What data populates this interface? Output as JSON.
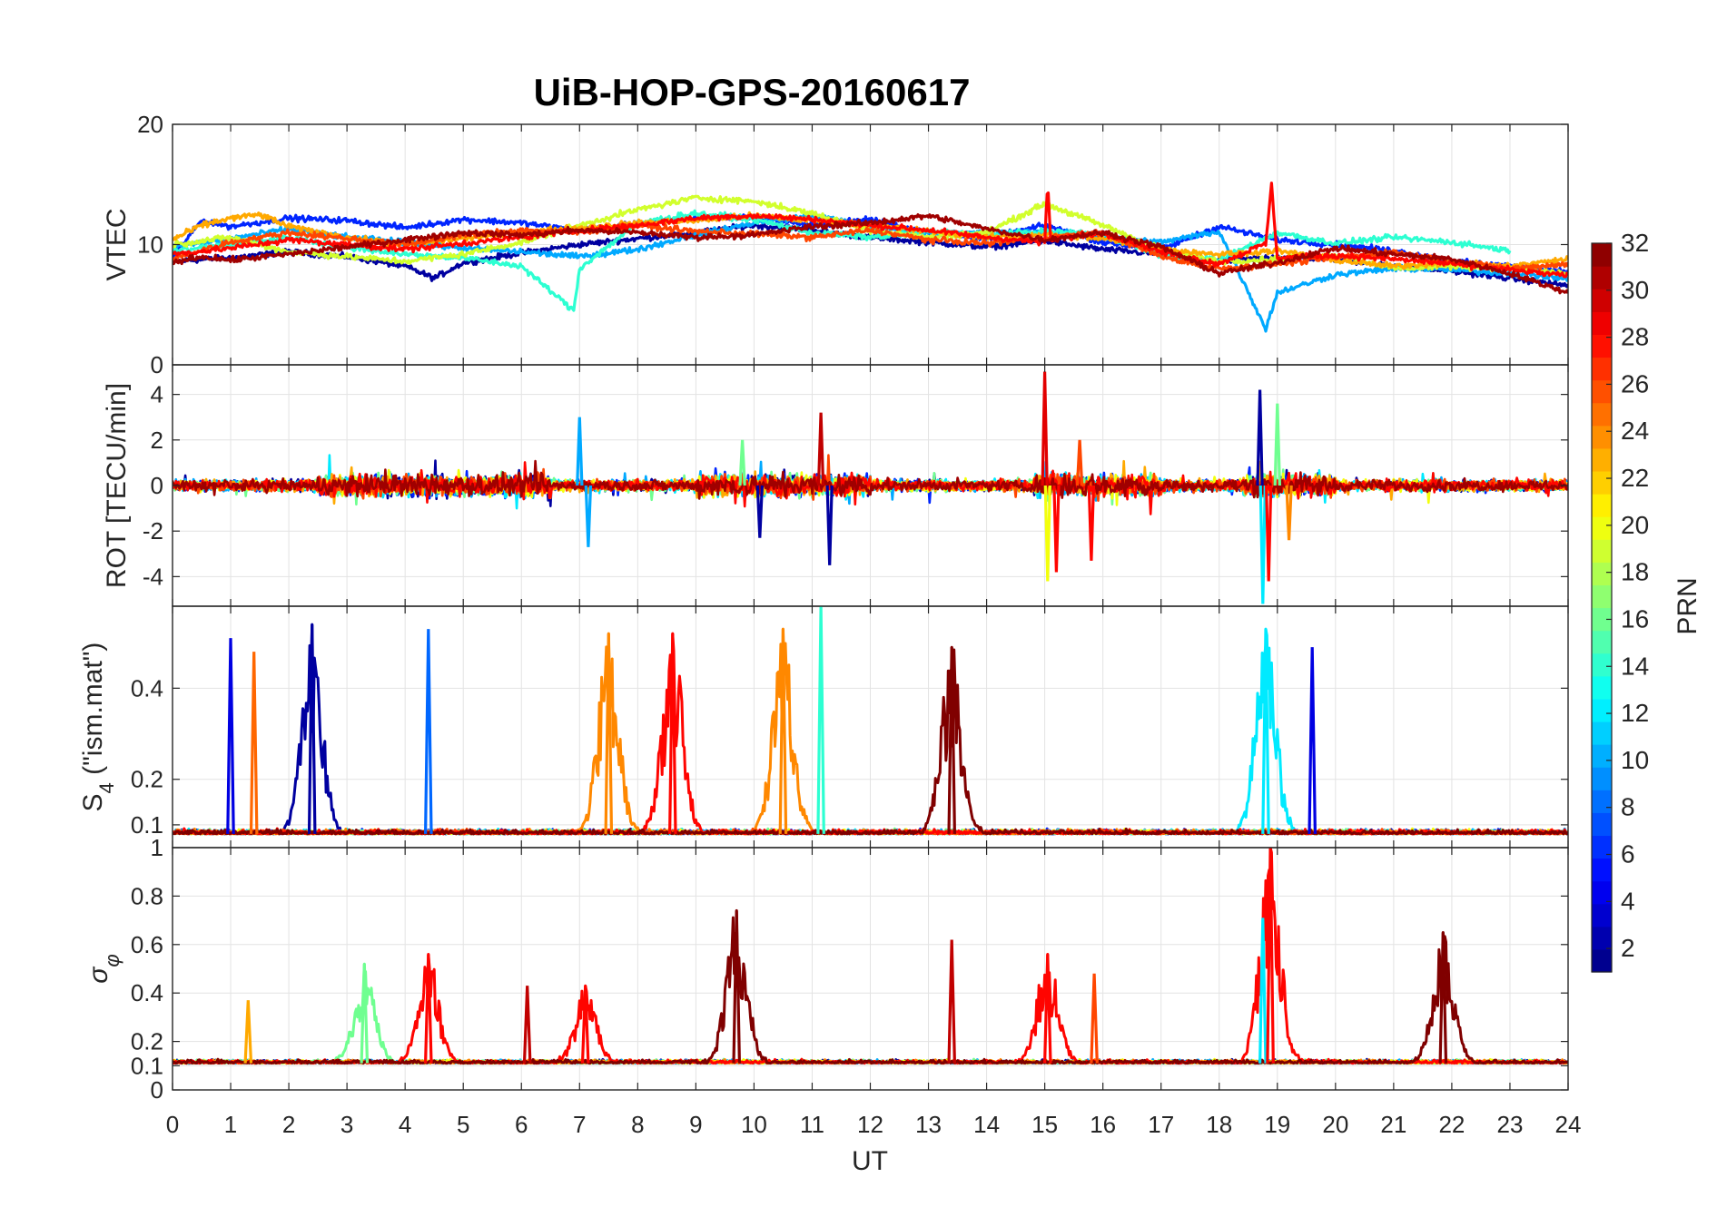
{
  "chart_data": {
    "type": "line",
    "title": "UiB-HOP-GPS-20160617",
    "xlabel": "UT",
    "xlim": [
      0,
      24
    ],
    "xticks": [
      0,
      1,
      2,
      3,
      4,
      5,
      6,
      7,
      8,
      9,
      10,
      11,
      12,
      13,
      14,
      15,
      16,
      17,
      18,
      19,
      20,
      21,
      22,
      23,
      24
    ],
    "grid": true,
    "panels": [
      {
        "ylabel": "VTEC",
        "ylim": [
          0,
          20
        ],
        "yticks": [
          0,
          10,
          20
        ],
        "note": "Vertical TEC per satellite (PRN 1-32); values mostly 7-14 TECU, dip near 3 at 18.8 UT, peaks near 15 at 15.0 and 18.9 UT",
        "series": [
          {
            "prn": 2,
            "x": [
              0,
              1,
              2,
              3,
              4,
              4.5,
              5,
              6,
              7,
              8,
              9,
              10,
              11,
              12,
              13,
              14,
              15,
              16,
              17,
              18,
              19,
              20,
              21,
              22,
              23,
              24
            ],
            "y": [
              8.6,
              8.9,
              9.4,
              9.0,
              8.2,
              7.2,
              8.5,
              9.3,
              10.0,
              10.5,
              11.0,
              11.6,
              11.2,
              10.6,
              10.2,
              9.8,
              10.3,
              9.6,
              9.2,
              8.6,
              9.0,
              8.8,
              8.2,
              7.8,
              7.2,
              6.6
            ]
          },
          {
            "prn": 6,
            "x": [
              0,
              0.5,
              1,
              2,
              3,
              4,
              5,
              6,
              7,
              8,
              9,
              10,
              11,
              12,
              13,
              14,
              15,
              16,
              17,
              18,
              19,
              20,
              21,
              22,
              23,
              24
            ],
            "y": [
              9.0,
              12.0,
              11.5,
              12.2,
              12.0,
              11.4,
              12.1,
              11.8,
              11.2,
              11.7,
              12.2,
              12.3,
              11.6,
              12.1,
              11.0,
              10.5,
              11.6,
              10.2,
              9.6,
              11.5,
              10.4,
              10.0,
              9.5,
              8.6,
              8.2,
              7.8
            ]
          },
          {
            "prn": 10,
            "x": [
              0,
              1,
              2,
              3,
              4,
              5,
              6,
              7,
              8,
              9,
              10,
              11,
              12,
              13,
              14,
              15,
              16,
              17,
              18,
              18.8,
              19,
              20,
              21,
              22,
              23,
              24
            ],
            "y": [
              9.8,
              10.5,
              11.3,
              10.6,
              10.2,
              9.7,
              9.4,
              9.0,
              9.6,
              10.8,
              11.8,
              12.4,
              11.5,
              11.0,
              10.9,
              11.1,
              10.6,
              10.2,
              11.1,
              3.0,
              6.0,
              7.5,
              8.0,
              7.9,
              7.6,
              7.2
            ]
          },
          {
            "prn": 14,
            "x": [
              0,
              1,
              2,
              3,
              4,
              5,
              6,
              6.9,
              7,
              8,
              9,
              10,
              11,
              12,
              13,
              14,
              15,
              16,
              17,
              18,
              19,
              20,
              21,
              22,
              23
            ],
            "y": [
              9.5,
              10.0,
              10.6,
              9.8,
              9.2,
              8.9,
              8.2,
              4.5,
              8.0,
              11.8,
              12.6,
              12.1,
              11.0,
              10.6,
              11.1,
              10.8,
              11.1,
              10.9,
              9.1,
              8.7,
              11.0,
              10.1,
              10.6,
              10.2,
              9.5
            ]
          },
          {
            "prn": 19,
            "x": [
              0,
              1,
              2,
              3,
              4,
              5,
              6,
              7,
              8,
              9,
              10,
              11,
              12,
              13,
              14,
              15,
              16,
              17,
              18,
              19,
              20,
              21,
              22,
              23,
              24
            ],
            "y": [
              10.0,
              10.6,
              9.4,
              9.0,
              8.6,
              9.2,
              10.2,
              11.6,
              12.9,
              13.9,
              13.6,
              12.6,
              11.2,
              10.6,
              11.0,
              13.4,
              11.6,
              9.6,
              8.6,
              8.8,
              9.2,
              8.0,
              8.2,
              8.0,
              7.6
            ]
          },
          {
            "prn": 23,
            "x": [
              0,
              0.5,
              1,
              1.5,
              2,
              3,
              4,
              5,
              6,
              7,
              8,
              9,
              10,
              11,
              12,
              13,
              14,
              15,
              16,
              17,
              18,
              19,
              20,
              21,
              22,
              23,
              24
            ],
            "y": [
              10.4,
              11.6,
              12.2,
              12.5,
              11.5,
              10.6,
              10.0,
              10.5,
              11.0,
              11.4,
              11.8,
              12.0,
              12.4,
              12.0,
              11.6,
              11.1,
              10.6,
              10.8,
              10.5,
              9.6,
              9.2,
              9.5,
              8.7,
              8.2,
              8.5,
              8.2,
              8.8
            ]
          },
          {
            "prn": 26,
            "x": [
              0,
              1,
              2,
              3,
              4,
              5,
              6,
              7,
              8,
              9,
              10,
              11,
              12,
              13,
              14,
              15,
              16,
              17,
              18,
              19,
              20,
              21,
              22,
              23,
              24
            ],
            "y": [
              8.8,
              10.2,
              11.0,
              10.5,
              10.0,
              10.8,
              11.2,
              11.0,
              11.6,
              11.1,
              10.9,
              10.6,
              11.2,
              10.4,
              10.1,
              10.6,
              11.0,
              9.0,
              8.0,
              8.4,
              8.9,
              9.4,
              8.6,
              8.0,
              8.4
            ]
          },
          {
            "prn": 28,
            "x": [
              0,
              1,
              2,
              3,
              4,
              5,
              6,
              7,
              8,
              9,
              10,
              11,
              12,
              13,
              14,
              15,
              15.05,
              15.1,
              16,
              17,
              18,
              18.8,
              18.9,
              19,
              20,
              21,
              22,
              23,
              24
            ],
            "y": [
              9.2,
              9.7,
              10.4,
              10.0,
              9.6,
              10.1,
              10.6,
              11.2,
              11.6,
              12.2,
              12.4,
              12.1,
              11.6,
              11.2,
              10.6,
              10.2,
              15.3,
              10.4,
              11.0,
              9.4,
              8.4,
              10.1,
              14.9,
              8.9,
              9.1,
              8.8,
              8.4,
              7.9,
              7.4
            ]
          },
          {
            "prn": 31,
            "x": [
              0,
              0.5,
              1,
              2,
              3,
              4,
              5,
              6,
              7,
              8,
              9,
              10,
              11,
              12,
              13,
              14,
              15,
              16,
              17,
              18,
              19,
              20,
              21,
              22,
              23,
              24
            ],
            "y": [
              8.5,
              9.0,
              8.7,
              9.2,
              9.8,
              10.4,
              11.0,
              10.8,
              11.2,
              11.0,
              10.6,
              10.8,
              11.5,
              11.8,
              12.4,
              11.3,
              10.4,
              11.0,
              9.8,
              7.6,
              8.5,
              9.7,
              9.2,
              8.8,
              7.6,
              6.0
            ]
          }
        ]
      },
      {
        "ylabel": "ROT [TECU/min]",
        "ylim": [
          -5.3,
          5.3
        ],
        "yticks": [
          -4,
          -2,
          0,
          2,
          4
        ],
        "note": "Rate of TEC per satellite; noise around 0 within ±1, spikes near 11.2 UT (-3.5/+3.2), 15.0 UT (±5), 18.8 UT (-5.2/+4.2)",
        "spikes": [
          {
            "x": 7.0,
            "y": 3.0,
            "prn": 10
          },
          {
            "x": 7.15,
            "y": -2.7,
            "prn": 10
          },
          {
            "x": 9.8,
            "y": 2.0,
            "prn": 16
          },
          {
            "x": 10.1,
            "y": -2.3,
            "prn": 2
          },
          {
            "x": 11.15,
            "y": 3.2,
            "prn": 30
          },
          {
            "x": 11.3,
            "y": -3.5,
            "prn": 2
          },
          {
            "x": 15.0,
            "y": 5.0,
            "prn": 29
          },
          {
            "x": 15.05,
            "y": -4.2,
            "prn": 20
          },
          {
            "x": 15.2,
            "y": -3.8,
            "prn": 28
          },
          {
            "x": 15.6,
            "y": 2.0,
            "prn": 26
          },
          {
            "x": 15.8,
            "y": -3.3,
            "prn": 28
          },
          {
            "x": 18.7,
            "y": 4.2,
            "prn": 2
          },
          {
            "x": 18.75,
            "y": -5.2,
            "prn": 12
          },
          {
            "x": 18.85,
            "y": -4.2,
            "prn": 28
          },
          {
            "x": 19.0,
            "y": 3.6,
            "prn": 16
          },
          {
            "x": 19.2,
            "y": -2.4,
            "prn": 24
          }
        ]
      },
      {
        "ylabel": "S4 (\"ism.mat\")",
        "ylim": [
          0.05,
          0.58
        ],
        "yticks": [
          0.1,
          0.2,
          0.4
        ],
        "note": "Amplitude scintillation index per satellite; baseline ~0.07-0.1, bursts reaching 0.5-0.6",
        "peaks": [
          {
            "x": 1.0,
            "y": 0.51,
            "prn": 4
          },
          {
            "x": 1.4,
            "y": 0.48,
            "prn": 25
          },
          {
            "x": 2.4,
            "y": 0.54,
            "prn": 2
          },
          {
            "x": 4.4,
            "y": 0.53,
            "prn": 8
          },
          {
            "x": 7.5,
            "y": 0.52,
            "prn": 24
          },
          {
            "x": 8.6,
            "y": 0.52,
            "prn": 28
          },
          {
            "x": 10.5,
            "y": 0.53,
            "prn": 24
          },
          {
            "x": 11.15,
            "y": 0.58,
            "prn": 14
          },
          {
            "x": 13.4,
            "y": 0.49,
            "prn": 32
          },
          {
            "x": 18.8,
            "y": 0.53,
            "prn": 12
          },
          {
            "x": 19.6,
            "y": 0.49,
            "prn": 4
          }
        ]
      },
      {
        "ylabel": "σφ",
        "ylim": [
          0,
          1
        ],
        "yticks": [
          0,
          0.1,
          0.2,
          0.4,
          0.6,
          0.8,
          1
        ],
        "note": "Phase scintillation index per satellite; baseline ~0.1, peaks up to 1.0 at 18.9 UT",
        "peaks": [
          {
            "x": 1.3,
            "y": 0.37,
            "prn": 23
          },
          {
            "x": 3.3,
            "y": 0.52,
            "prn": 16
          },
          {
            "x": 4.4,
            "y": 0.56,
            "prn": 28
          },
          {
            "x": 6.1,
            "y": 0.43,
            "prn": 30
          },
          {
            "x": 7.1,
            "y": 0.43,
            "prn": 28
          },
          {
            "x": 9.7,
            "y": 0.74,
            "prn": 32
          },
          {
            "x": 13.4,
            "y": 0.62,
            "prn": 30
          },
          {
            "x": 15.05,
            "y": 0.56,
            "prn": 28
          },
          {
            "x": 15.85,
            "y": 0.48,
            "prn": 26
          },
          {
            "x": 18.75,
            "y": 0.71,
            "prn": 12
          },
          {
            "x": 18.88,
            "y": 1.0,
            "prn": 28
          },
          {
            "x": 21.85,
            "y": 0.65,
            "prn": 32
          }
        ]
      }
    ],
    "colorbar": {
      "label": "PRN",
      "colormap": "jet",
      "range": [
        1,
        32
      ],
      "ticks": [
        2,
        4,
        6,
        8,
        10,
        12,
        14,
        16,
        18,
        20,
        22,
        24,
        26,
        28,
        30,
        32
      ]
    }
  }
}
